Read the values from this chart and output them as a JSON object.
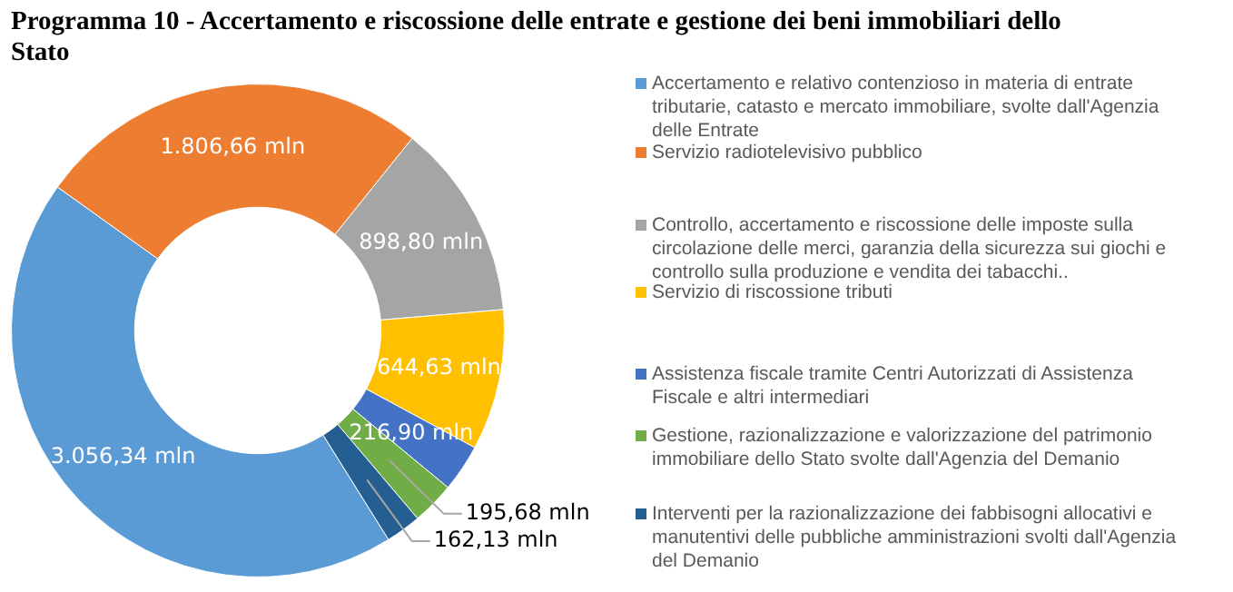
{
  "chart_data": {
    "type": "donut",
    "title": "Programma 10 - Accertamento e riscossione delle entrate e gestione dei beni immobiliari dello Stato",
    "categories": [
      "Accertamento e relativo contenzioso in materia di entrate tributarie, catasto e mercato immobiliare, svolte dall'Agenzia delle Entrate",
      "Servizio radiotelevisivo pubblico",
      "Controllo, accertamento e riscossione delle imposte sulla circolazione delle merci, garanzia della sicurezza sui giochi e controllo sulla produzione e vendita dei tabacchi..",
      "Servizio di riscossione tributi",
      "Assistenza fiscale tramite Centri Autorizzati di Assistenza Fiscale e altri intermediari",
      "Gestione, razionalizzazione e valorizzazione del patrimonio immobiliare dello Stato svolte dall'Agenzia del Demanio",
      "Interventi per la razionalizzazione dei fabbisogni allocativi e manutentivi delle pubbliche amministrazioni svolti dall'Agenzia del Demanio"
    ],
    "values": [
      3056.34,
      1806.66,
      898.8,
      644.63,
      216.9,
      195.68,
      162.13
    ],
    "colors": [
      "#5b9bd5",
      "#ed7d31",
      "#a5a5a5",
      "#ffc000",
      "#4472c4",
      "#70ad47",
      "#255e91"
    ],
    "value_labels": [
      "3.056,34 mln",
      "1.806,66 mln",
      "898,80 mln",
      "644,63 mln",
      "216,90 mln",
      "195,68 mln",
      "162,13 mln"
    ],
    "legend": "right"
  }
}
